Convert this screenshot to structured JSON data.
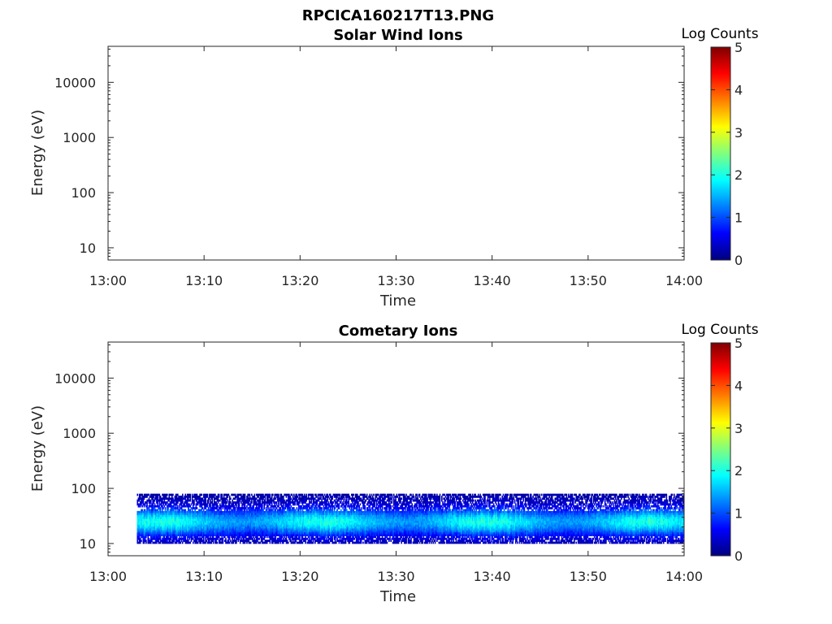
{
  "figure_title": "RPCICA160217T13.PNG",
  "colormap_stops": [
    "#00007f",
    "#0000ff",
    "#007fff",
    "#00ffff",
    "#7fff7f",
    "#ffff00",
    "#ff7f00",
    "#ff0000",
    "#7f0000"
  ],
  "chart_data": [
    {
      "type": "heatmap",
      "title": "Solar Wind Ions",
      "xlabel": "Time",
      "ylabel": "Energy (eV)",
      "x_ticks": [
        "13:00",
        "13:10",
        "13:20",
        "13:30",
        "13:40",
        "13:50",
        "14:00"
      ],
      "xlim": [
        "13:00",
        "14:00"
      ],
      "y_scale": "log",
      "ylim": [
        6,
        45000
      ],
      "y_ticks": [
        10,
        100,
        1000,
        10000
      ],
      "y_tick_labels": [
        "10",
        "100",
        "1000",
        "10000"
      ],
      "colorbar": {
        "label": "Log Counts",
        "range": [
          0,
          5
        ],
        "ticks": [
          "0",
          "1",
          "2",
          "3",
          "4",
          "5"
        ]
      },
      "data": "none visible (empty)"
    },
    {
      "type": "heatmap",
      "title": "Cometary Ions",
      "xlabel": "Time",
      "ylabel": "Energy (eV)",
      "x_ticks": [
        "13:00",
        "13:10",
        "13:20",
        "13:30",
        "13:40",
        "13:50",
        "14:00"
      ],
      "xlim": [
        "13:00",
        "14:00"
      ],
      "y_scale": "log",
      "ylim": [
        6,
        45000
      ],
      "y_ticks": [
        10,
        100,
        1000,
        10000
      ],
      "y_tick_labels": [
        "10",
        "100",
        "1000",
        "10000"
      ],
      "colorbar": {
        "label": "Log Counts",
        "range": [
          0,
          5
        ],
        "ticks": [
          "0",
          "1",
          "2",
          "3",
          "4",
          "5"
        ]
      },
      "data": {
        "time_start": "13:03",
        "time_end": "14:00",
        "energy_range_eV": [
          10,
          80
        ],
        "peak_energy_eV": 25,
        "peak_log_counts": 2.0,
        "typical_log_counts": 1.2
      }
    }
  ]
}
